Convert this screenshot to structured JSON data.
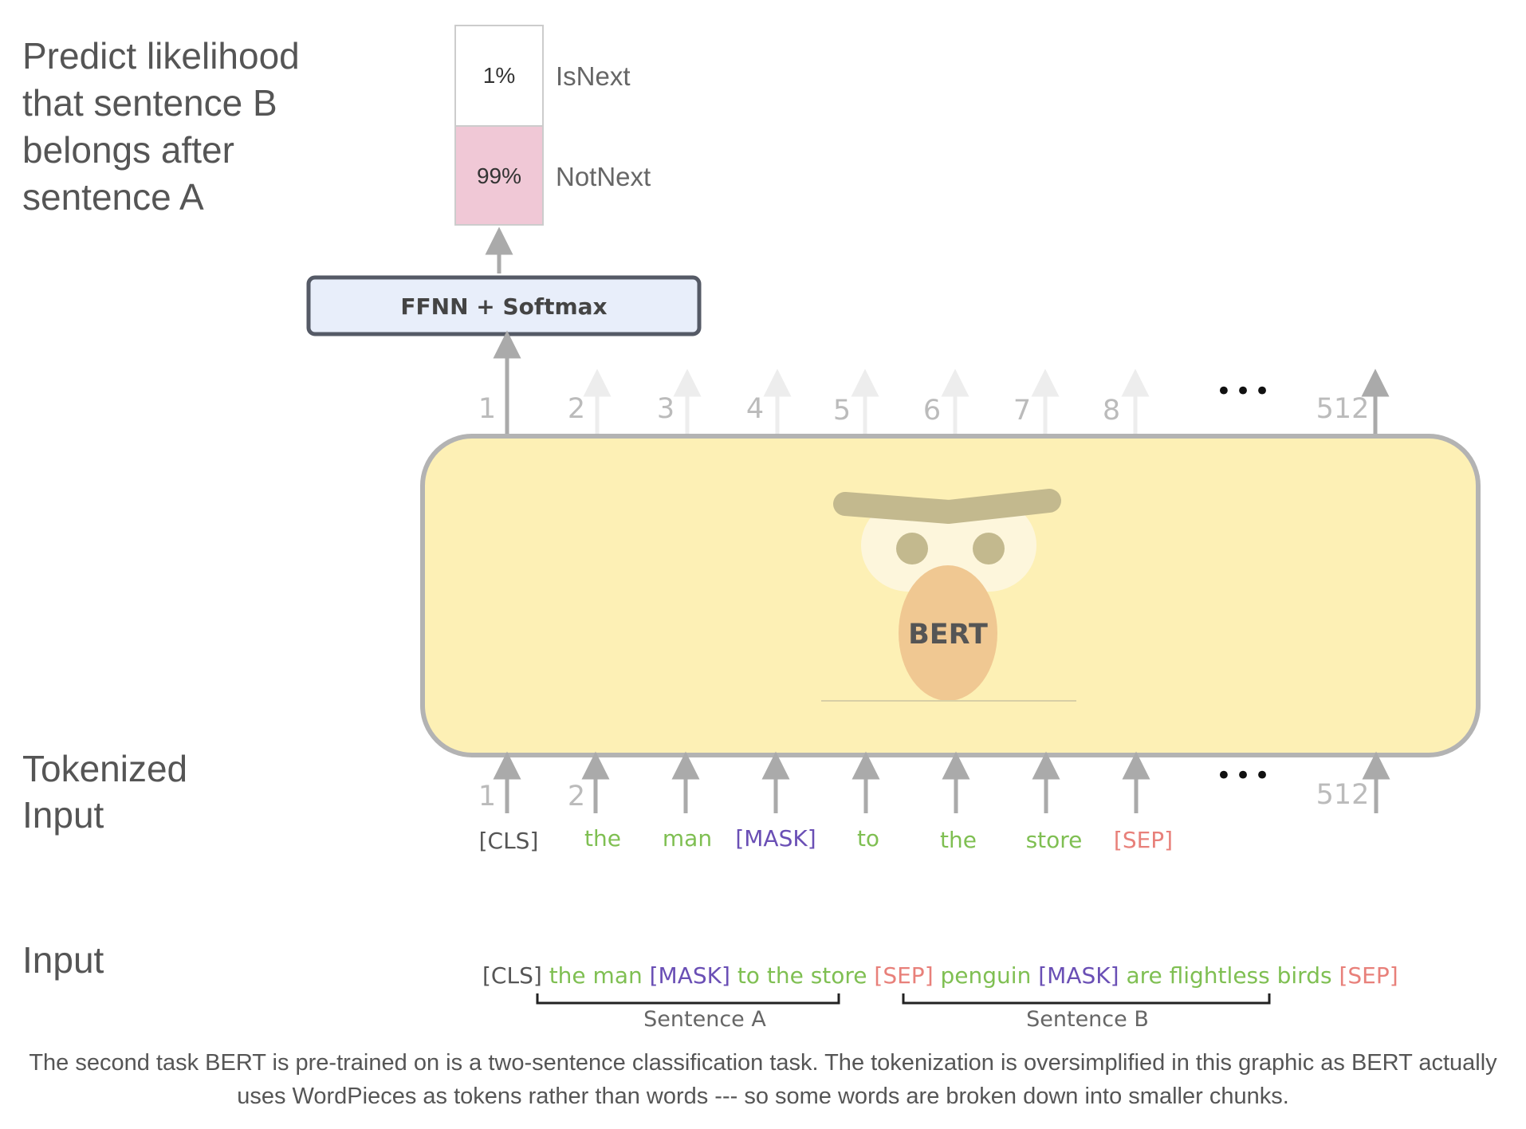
{
  "left_labels": {
    "predict_lines": [
      "Predict likelihood",
      "that sentence B",
      "belongs after",
      "sentence A"
    ],
    "tokenized_lines": [
      "Tokenized",
      "Input"
    ],
    "input_label": "Input"
  },
  "output": {
    "isnext": {
      "value": "1%",
      "label": "IsNext"
    },
    "notnext": {
      "value": "99%",
      "label": "NotNext"
    }
  },
  "ffnn_label": "FFNN + Softmax",
  "bert_label": "BERT",
  "positions": [
    "1",
    "2",
    "3",
    "4",
    "5",
    "6",
    "7",
    "8",
    "512"
  ],
  "ellipsis": "•••",
  "tokens": [
    {
      "text": "[CLS]",
      "type": "special"
    },
    {
      "text": "the",
      "type": "word"
    },
    {
      "text": "man",
      "type": "word"
    },
    {
      "text": "[MASK]",
      "type": "mask"
    },
    {
      "text": "to",
      "type": "word"
    },
    {
      "text": "the",
      "type": "word"
    },
    {
      "text": "store",
      "type": "word"
    },
    {
      "text": "[SEP]",
      "type": "sep"
    }
  ],
  "input_sentence": [
    {
      "text": "[CLS]",
      "type": "special"
    },
    {
      "text": "the man",
      "type": "word"
    },
    {
      "text": "[MASK]",
      "type": "mask"
    },
    {
      "text": "to the store",
      "type": "word"
    },
    {
      "text": "[SEP]",
      "type": "sep"
    },
    {
      "text": "penguin",
      "type": "word"
    },
    {
      "text": "[MASK]",
      "type": "mask"
    },
    {
      "text": "are flightless birds",
      "type": "word"
    },
    {
      "text": "[SEP]",
      "type": "sep"
    }
  ],
  "brackets": {
    "a": "Sentence A",
    "b": "Sentence B"
  },
  "caption": "The second task BERT is pre-trained on is a two-sentence classification task. The tokenization is oversimplified in this graphic as BERT actually uses WordPieces as tokens rather than words --- so some words are broken down into smaller chunks.",
  "colors": {
    "word": "#7fbf52",
    "mask": "#6a4fb5",
    "sep": "#e8807a",
    "special": "#555555",
    "bert_body": "#fdf0b5",
    "notnext_fill": "#f0c8d6",
    "ffnn_fill": "#e8eefa"
  }
}
